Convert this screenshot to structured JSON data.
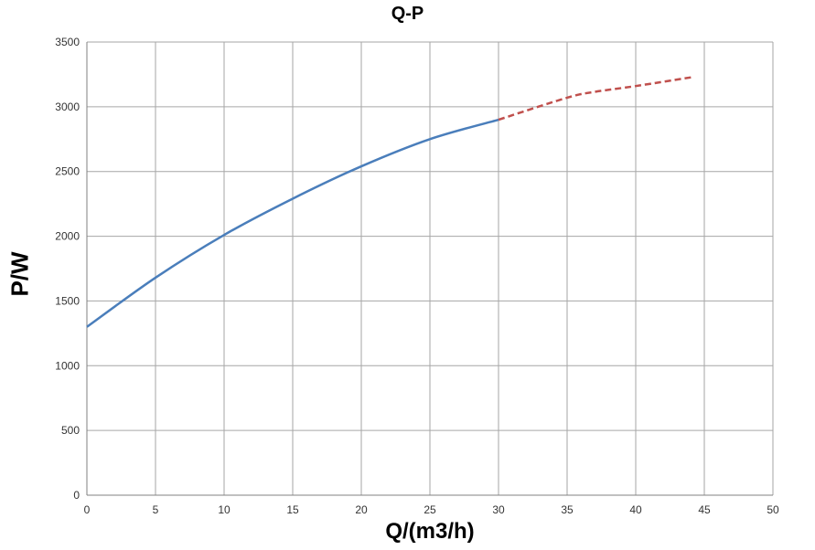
{
  "chart_data": {
    "type": "line",
    "title": "Q-P",
    "xlabel": "Q/(m3/h)",
    "ylabel": "P/W",
    "xlim": [
      0,
      50
    ],
    "ylim": [
      0,
      3500
    ],
    "xticks": [
      0,
      5,
      10,
      15,
      20,
      25,
      30,
      35,
      40,
      45,
      50
    ],
    "yticks": [
      0,
      500,
      1000,
      1500,
      2000,
      2500,
      3000,
      3500
    ],
    "grid": true,
    "series": [
      {
        "style": "solid",
        "color": "#4a7ebb",
        "x": [
          0,
          5,
          10,
          15,
          20,
          25,
          30
        ],
        "y": [
          1300,
          1680,
          2010,
          2290,
          2540,
          2750,
          2900
        ]
      },
      {
        "style": "dashed",
        "color": "#c0504d",
        "x": [
          30,
          35,
          37,
          40,
          44.2
        ],
        "y": [
          2900,
          3070,
          3115,
          3160,
          3230
        ]
      }
    ]
  }
}
